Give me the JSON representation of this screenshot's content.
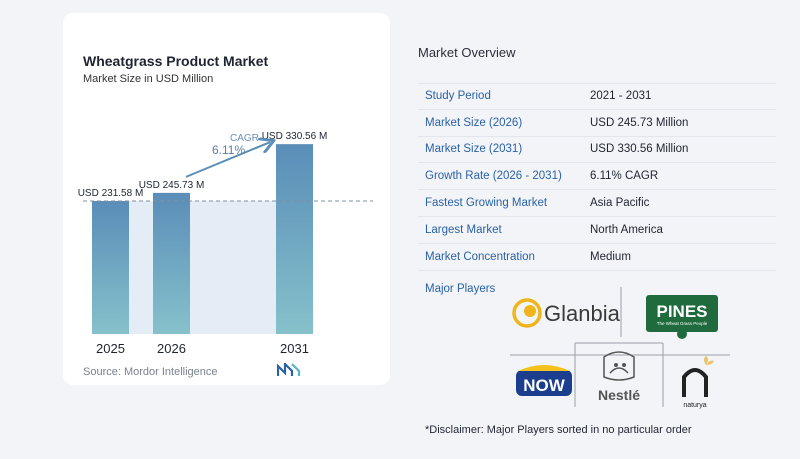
{
  "chart": {
    "title": "Wheatgrass Product Market",
    "subtitle": "Market Size in USD Million",
    "source": "Source: Mordor Intelligence",
    "cagr_label": "CAGR",
    "cagr_value": "6.11%"
  },
  "chart_data": {
    "type": "bar",
    "categories": [
      "2025",
      "2026",
      "2031"
    ],
    "values": [
      231.58,
      245.73,
      330.56
    ],
    "value_labels": [
      "USD 231.58 M",
      "USD 245.73 M",
      "USD 330.56 M"
    ],
    "title": "Wheatgrass Product Market",
    "subtitle": "Market Size in USD Million",
    "xlabel": "",
    "ylabel": "",
    "grid": false,
    "colors": {
      "bar_top": "#5a8db8",
      "bar_bottom": "#86c1cb",
      "reference": "#e4ecf5",
      "arrow": "#5a8db8"
    }
  },
  "overview": {
    "title": "Market Overview",
    "rows": [
      {
        "key": "Study Period",
        "value": "2021 - 2031"
      },
      {
        "key": "Market Size (2026)",
        "value": "USD 245.73 Million"
      },
      {
        "key": "Market Size (2031)",
        "value": "USD 330.56 Million"
      },
      {
        "key": "Growth Rate (2026 - 2031)",
        "value": "6.11% CAGR"
      },
      {
        "key": "Fastest Growing Market",
        "value": "Asia Pacific"
      },
      {
        "key": "Largest Market",
        "value": "North America"
      },
      {
        "key": "Market Concentration",
        "value": "Medium"
      }
    ],
    "players_label": "Major Players",
    "players": [
      {
        "name": "Glanbia",
        "icon": "glanbia-logo"
      },
      {
        "name": "PINES",
        "tagline": "The Wheat Grass People",
        "icon": "pines-logo"
      },
      {
        "name": "NOW",
        "icon": "now-foods-logo"
      },
      {
        "name": "Nestlé",
        "icon": "nestle-logo"
      },
      {
        "name": "naturya",
        "icon": "naturya-logo"
      }
    ],
    "disclaimer": "*Disclaimer: Major Players sorted in no particular order"
  }
}
